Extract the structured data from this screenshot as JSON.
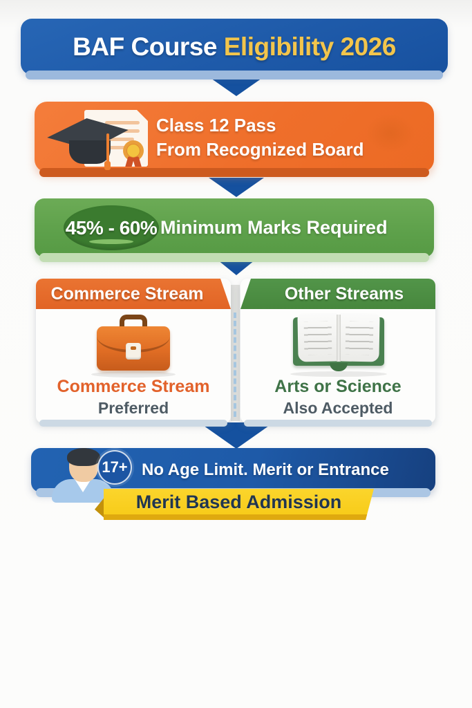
{
  "header": {
    "title_left": "BAF Course ",
    "title_right": "Eligibility 2026",
    "bg_color": "#1c57a6",
    "accent_color": "#f2c54c"
  },
  "steps": {
    "class12": {
      "line1": "Class 12 Pass",
      "line2": "From Recognized Board",
      "bg_color": "#ef6f2b",
      "icon": "graduation-cap-and-certificate"
    },
    "marks": {
      "badge": "45% - 60%",
      "label": "Minimum Marks Required",
      "bg_color": "#5da04a",
      "badge_bg_color": "#3b7b2f"
    },
    "streams": {
      "left": {
        "header": "Commerce Stream",
        "header_bg_color": "#e16425",
        "icon": "briefcase",
        "line1": "Commerce Stream",
        "line2": "Preferred",
        "line1_color": "#e2622b"
      },
      "right": {
        "header": "Other Streams",
        "header_bg_color": "#47873d",
        "icon": "open-book",
        "line1": "Arts or Science",
        "line2": "Also Accepted",
        "line1_color": "#3f7347"
      }
    },
    "age": {
      "badge": "17+",
      "label": "No Age Limit. Merit or Entrance",
      "bg_color": "#1e5aa8",
      "icon": "student-avatar"
    },
    "ribbon": {
      "label": "Merit Based Admission",
      "bg_color": "#f7ca16",
      "text_color": "#21364f"
    }
  }
}
